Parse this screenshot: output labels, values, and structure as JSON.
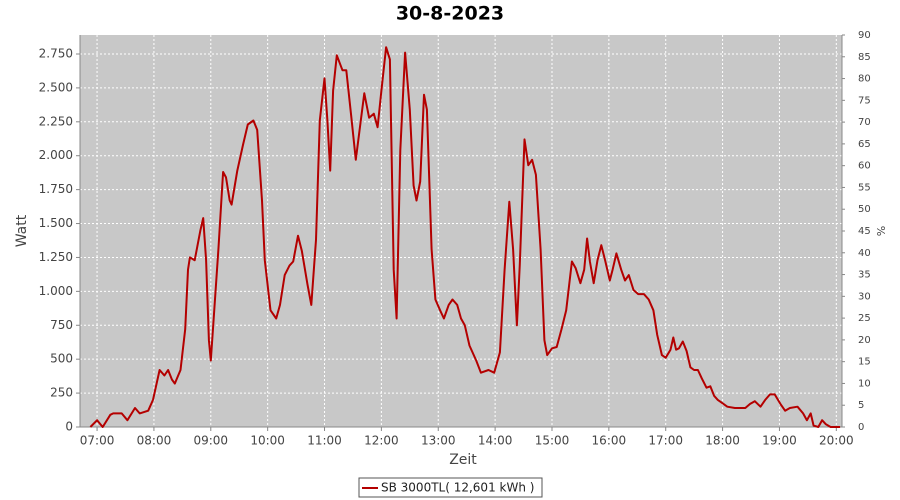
{
  "chart_data": {
    "type": "line",
    "title": "30-8-2023",
    "xlabel": "Zeit",
    "ylabel": "Watt",
    "y2label": "%",
    "xlim": [
      402,
      1206
    ],
    "xticks": [
      {
        "value": 420,
        "label": "07:00"
      },
      {
        "value": 480,
        "label": "08:00"
      },
      {
        "value": 540,
        "label": "09:00"
      },
      {
        "value": 600,
        "label": "10:00"
      },
      {
        "value": 660,
        "label": "11:00"
      },
      {
        "value": 720,
        "label": "12:00"
      },
      {
        "value": 780,
        "label": "13:00"
      },
      {
        "value": 840,
        "label": "14:00"
      },
      {
        "value": 900,
        "label": "15:00"
      },
      {
        "value": 960,
        "label": "16:00"
      },
      {
        "value": 1020,
        "label": "17:00"
      },
      {
        "value": 1080,
        "label": "18:00"
      },
      {
        "value": 1140,
        "label": "19:00"
      },
      {
        "value": 1200,
        "label": "20:00"
      }
    ],
    "ylim": [
      0,
      2890
    ],
    "yticks": [
      0,
      250,
      500,
      750,
      {
        "value": 1000,
        "label": "1.000"
      },
      {
        "value": 1250,
        "label": "1.250"
      },
      {
        "value": 1500,
        "label": "1.500"
      },
      {
        "value": 1750,
        "label": "1.750"
      },
      {
        "value": 2000,
        "label": "2.000"
      },
      {
        "value": 2250,
        "label": "2.250"
      },
      {
        "value": 2500,
        "label": "2.500"
      },
      {
        "value": 2750,
        "label": "2.750"
      }
    ],
    "y2lim": [
      0,
      90
    ],
    "y2ticks": [
      0,
      5,
      10,
      15,
      20,
      25,
      30,
      35,
      40,
      45,
      50,
      55,
      60,
      65,
      70,
      75,
      80,
      85,
      90
    ],
    "grid": true,
    "x": [
      413,
      420,
      426,
      434,
      437,
      446,
      452,
      460,
      465,
      474,
      479,
      486,
      491,
      495,
      499,
      502,
      508,
      513,
      516,
      518,
      523,
      529,
      532,
      535,
      538,
      540,
      543,
      548,
      553,
      556,
      560,
      562,
      568,
      574,
      579,
      585,
      589,
      594,
      597,
      603,
      609,
      613,
      618,
      623,
      627,
      632,
      636,
      642,
      646,
      651,
      655,
      660,
      663,
      666,
      669,
      673,
      679,
      683,
      688,
      693,
      697,
      702,
      707,
      712,
      716,
      720,
      725,
      729,
      733,
      736,
      740,
      745,
      750,
      754,
      757,
      761,
      765,
      768,
      773,
      777,
      782,
      786,
      791,
      795,
      800,
      804,
      808,
      813,
      820,
      825,
      833,
      839,
      845,
      850,
      855,
      859,
      863,
      866,
      871,
      875,
      879,
      883,
      888,
      892,
      895,
      900,
      905,
      910,
      915,
      921,
      925,
      930,
      934,
      937,
      940,
      944,
      948,
      952,
      956,
      961,
      964,
      968,
      973,
      977,
      981,
      986,
      991,
      997,
      1002,
      1007,
      1011,
      1016,
      1020,
      1025,
      1028,
      1031,
      1034,
      1038,
      1042,
      1046,
      1050,
      1054,
      1058,
      1063,
      1067,
      1071,
      1075,
      1079,
      1085,
      1093,
      1104,
      1109,
      1114,
      1120,
      1125,
      1130,
      1135,
      1141,
      1146,
      1151,
      1159,
      1165,
      1169,
      1173,
      1176,
      1181,
      1185,
      1189,
      1194,
      1204
    ],
    "series": [
      {
        "name": "SB 3000TL( 12,601 kWh )",
        "color": "#b40000",
        "values": [
          0,
          50,
          0,
          90,
          100,
          100,
          50,
          140,
          100,
          120,
          200,
          420,
          380,
          420,
          350,
          320,
          420,
          720,
          1160,
          1250,
          1230,
          1450,
          1540,
          1230,
          640,
          490,
          790,
          1310,
          1880,
          1840,
          1670,
          1640,
          1890,
          2080,
          2230,
          2260,
          2190,
          1670,
          1230,
          860,
          800,
          900,
          1120,
          1190,
          1220,
          1410,
          1300,
          1050,
          900,
          1380,
          2260,
          2570,
          2260,
          1890,
          2480,
          2740,
          2630,
          2630,
          2300,
          1970,
          2190,
          2460,
          2280,
          2310,
          2210,
          2480,
          2800,
          2710,
          1160,
          800,
          2040,
          2760,
          2340,
          1780,
          1670,
          1810,
          2450,
          2340,
          1310,
          940,
          860,
          800,
          900,
          940,
          900,
          800,
          750,
          600,
          490,
          400,
          420,
          400,
          550,
          1160,
          1660,
          1310,
          750,
          1200,
          2120,
          1930,
          1970,
          1860,
          1310,
          640,
          530,
          580,
          590,
          720,
          860,
          1220,
          1170,
          1060,
          1160,
          1390,
          1220,
          1060,
          1230,
          1340,
          1230,
          1080,
          1160,
          1280,
          1160,
          1080,
          1120,
          1010,
          980,
          980,
          940,
          860,
          680,
          530,
          510,
          570,
          660,
          570,
          580,
          630,
          560,
          440,
          420,
          420,
          360,
          290,
          300,
          230,
          200,
          180,
          150,
          140,
          140,
          170,
          190,
          150,
          200,
          240,
          240,
          170,
          120,
          140,
          150,
          100,
          50,
          100,
          10,
          0,
          50,
          20,
          0,
          0
        ]
      }
    ]
  }
}
